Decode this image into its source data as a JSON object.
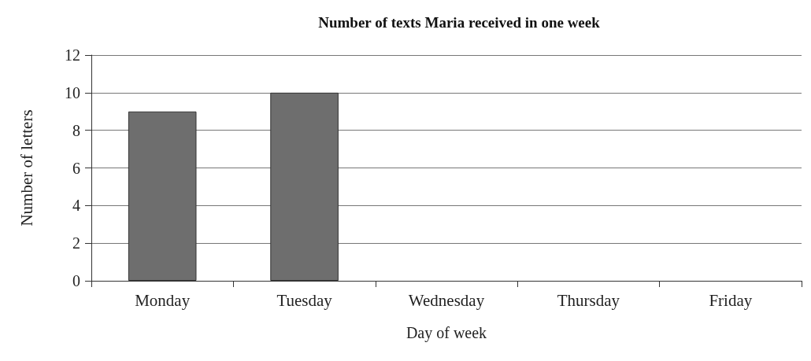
{
  "chart_data": {
    "type": "bar",
    "title": "Number of texts Maria received in one week",
    "xlabel": "Day of week",
    "ylabel": "Number of letters",
    "categories": [
      "Monday",
      "Tuesday",
      "Wednesday",
      "Thursday",
      "Friday"
    ],
    "values": [
      9,
      10,
      null,
      null,
      null
    ],
    "color": "#6e6e6e",
    "ylim": [
      0,
      12
    ],
    "yticks": [
      0,
      2,
      4,
      6,
      8,
      10,
      12
    ],
    "grid": "y"
  }
}
